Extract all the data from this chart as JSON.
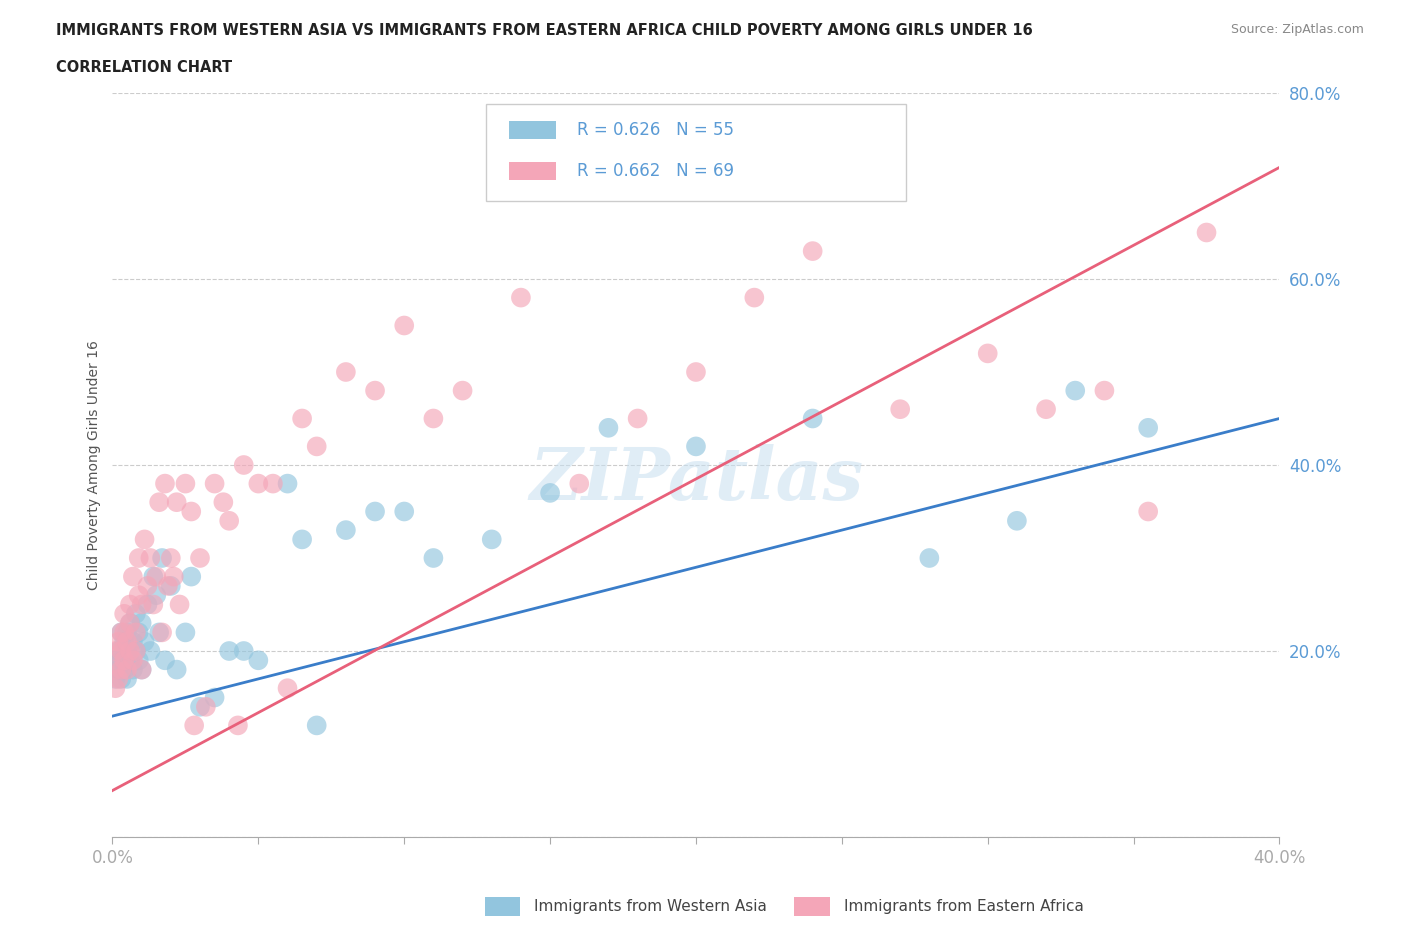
{
  "title_line1": "IMMIGRANTS FROM WESTERN ASIA VS IMMIGRANTS FROM EASTERN AFRICA CHILD POVERTY AMONG GIRLS UNDER 16",
  "title_line2": "CORRELATION CHART",
  "source": "Source: ZipAtlas.com",
  "ylabel": "Child Poverty Among Girls Under 16",
  "xlim": [
    0.0,
    0.4
  ],
  "ylim": [
    0.0,
    0.8
  ],
  "R_blue": 0.626,
  "N_blue": 55,
  "R_pink": 0.662,
  "N_pink": 69,
  "blue_color": "#92c5de",
  "pink_color": "#f4a6b8",
  "blue_line_color": "#3a7dc9",
  "pink_line_color": "#e8607a",
  "tick_color": "#5b9bd5",
  "legend_blue_label": "Immigrants from Western Asia",
  "legend_pink_label": "Immigrants from Eastern Africa",
  "watermark": "ZIPatlas",
  "blue_line_y0": 0.13,
  "blue_line_y1": 0.45,
  "pink_line_y0": 0.05,
  "pink_line_y1": 0.72,
  "blue_scatter_x": [
    0.001,
    0.001,
    0.002,
    0.002,
    0.003,
    0.003,
    0.003,
    0.004,
    0.004,
    0.005,
    0.005,
    0.005,
    0.006,
    0.006,
    0.007,
    0.007,
    0.008,
    0.008,
    0.009,
    0.009,
    0.01,
    0.01,
    0.011,
    0.012,
    0.013,
    0.014,
    0.015,
    0.016,
    0.017,
    0.018,
    0.02,
    0.022,
    0.025,
    0.027,
    0.03,
    0.035,
    0.04,
    0.045,
    0.05,
    0.06,
    0.065,
    0.07,
    0.08,
    0.09,
    0.1,
    0.11,
    0.13,
    0.15,
    0.17,
    0.2,
    0.24,
    0.28,
    0.31,
    0.33,
    0.355
  ],
  "blue_scatter_y": [
    0.17,
    0.19,
    0.18,
    0.2,
    0.17,
    0.19,
    0.22,
    0.18,
    0.21,
    0.17,
    0.2,
    0.22,
    0.19,
    0.23,
    0.18,
    0.21,
    0.2,
    0.24,
    0.19,
    0.22,
    0.18,
    0.23,
    0.21,
    0.25,
    0.2,
    0.28,
    0.26,
    0.22,
    0.3,
    0.19,
    0.27,
    0.18,
    0.22,
    0.28,
    0.14,
    0.15,
    0.2,
    0.2,
    0.19,
    0.38,
    0.32,
    0.12,
    0.33,
    0.35,
    0.35,
    0.3,
    0.32,
    0.37,
    0.44,
    0.42,
    0.45,
    0.3,
    0.34,
    0.48,
    0.44
  ],
  "pink_scatter_x": [
    0.001,
    0.001,
    0.001,
    0.002,
    0.002,
    0.003,
    0.003,
    0.003,
    0.004,
    0.004,
    0.004,
    0.005,
    0.005,
    0.006,
    0.006,
    0.006,
    0.007,
    0.007,
    0.008,
    0.008,
    0.009,
    0.009,
    0.01,
    0.01,
    0.011,
    0.012,
    0.013,
    0.014,
    0.015,
    0.016,
    0.017,
    0.018,
    0.019,
    0.02,
    0.021,
    0.022,
    0.023,
    0.025,
    0.027,
    0.028,
    0.03,
    0.032,
    0.035,
    0.038,
    0.04,
    0.043,
    0.045,
    0.05,
    0.055,
    0.06,
    0.065,
    0.07,
    0.08,
    0.09,
    0.1,
    0.11,
    0.12,
    0.14,
    0.16,
    0.18,
    0.2,
    0.22,
    0.24,
    0.27,
    0.3,
    0.32,
    0.34,
    0.355,
    0.375
  ],
  "pink_scatter_y": [
    0.16,
    0.18,
    0.2,
    0.17,
    0.21,
    0.18,
    0.22,
    0.2,
    0.19,
    0.22,
    0.24,
    0.18,
    0.21,
    0.2,
    0.23,
    0.25,
    0.19,
    0.28,
    0.2,
    0.22,
    0.26,
    0.3,
    0.18,
    0.25,
    0.32,
    0.27,
    0.3,
    0.25,
    0.28,
    0.36,
    0.22,
    0.38,
    0.27,
    0.3,
    0.28,
    0.36,
    0.25,
    0.38,
    0.35,
    0.12,
    0.3,
    0.14,
    0.38,
    0.36,
    0.34,
    0.12,
    0.4,
    0.38,
    0.38,
    0.16,
    0.45,
    0.42,
    0.5,
    0.48,
    0.55,
    0.45,
    0.48,
    0.58,
    0.38,
    0.45,
    0.5,
    0.58,
    0.63,
    0.46,
    0.52,
    0.46,
    0.48,
    0.35,
    0.65
  ]
}
